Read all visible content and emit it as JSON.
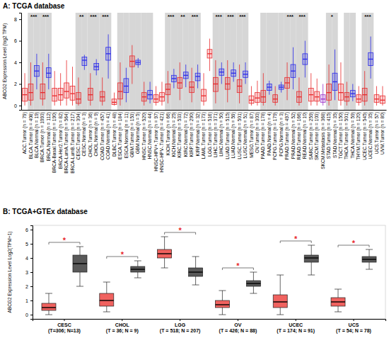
{
  "chart_data": [
    {
      "type": "box",
      "title": "A: TCGA database",
      "y_label": "ABCG2 Expression Level (log2 TPM)",
      "categories": [
        "ACC.Tumor (n = 79)",
        "BLCA.Tumor (n = 408)",
        "BLCA.Normal (n = 19)",
        "BRCA.Tumor (n = 1093)",
        "BRCA.Normal (n = 112)",
        "BRCA-Basal.Tumor (n = 190)",
        "BRCA-Her2.Tumor (n = 82)",
        "BRCA-LumA.Tumor (n = 564)",
        "BRCA-LumB.Tumor (n = 217)",
        "CESC.Tumor (n = 304)",
        "CESC.Normal (n = 3)",
        "CHOL.Tumor (n = 36)",
        "CHOL.Normal (n = 9)",
        "COAD.Tumor (n = 457)",
        "COAD.Normal (n = 41)",
        "DLBC.Tumor (n = 48)",
        "ESCA.Tumor (n = 184)",
        "ESCA.Normal (n = 11)",
        "GBM.Tumor (n = 153)",
        "GBM.Normal (n = 5)",
        "HNSC.Tumor (n = 520)",
        "HNSC.Normal (n = 44)",
        "HNSC-HPV+.Tumor (n = 97)",
        "HNSC-HPV-.Tumor (n = 421)",
        "KICH.Tumor (n = 66)",
        "KICH.Normal (n = 25)",
        "KIRC.Tumor (n = 533)",
        "KIRC.Normal (n = 72)",
        "KIRP.Tumor (n = 290)",
        "KIRP.Normal (n = 32)",
        "LAML.Tumor (n = 173)",
        "LGG.Tumor (n = 516)",
        "LIHC.Tumor (n = 371)",
        "LIHC.Normal (n = 50)",
        "LUAD.Tumor (n = 515)",
        "LUAD.Normal (n = 59)",
        "LUSC.Tumor (n = 501)",
        "LUSC.Normal (n = 51)",
        "MESO.Tumor (n = 87)",
        "OV.Tumor (n = 303)",
        "PAAD.Tumor (n = 178)",
        "PAAD.Normal (n = 4)",
        "PCPG.Tumor (n = 179)",
        "PCPG.Normal (n = 3)",
        "PRAD.Tumor (n = 497)",
        "PRAD.Normal (n = 52)",
        "READ.Tumor (n = 166)",
        "READ.Normal (n = 10)",
        "SARC.Tumor (n = 259)",
        "SKCM.Tumor (n = 103)",
        "SKCM.Metastasis (n = 368)",
        "STAD.Tumor (n = 415)",
        "STAD.Normal (n = 35)",
        "TGCT.Tumor (n = 150)",
        "THCA.Tumor (n = 501)",
        "THCA.Normal (n = 59)",
        "THYM.Tumor (n = 120)",
        "UCEC.Tumor (n = 545)",
        "UCEC.Normal (n = 35)",
        "UCS.Tumor (n = 57)",
        "UVM.Tumor (n = 80)"
      ],
      "values": [
        [
          0,
          0.4,
          1.0,
          1.6,
          3.0
        ],
        [
          0,
          0.5,
          1.2,
          2.0,
          4.0
        ],
        [
          1.5,
          2.7,
          3.2,
          3.7,
          4.8
        ],
        [
          0,
          0.6,
          1.2,
          2.0,
          4.0
        ],
        [
          1.5,
          2.6,
          3.0,
          3.5,
          4.8
        ],
        [
          0,
          0.4,
          0.9,
          1.6,
          3.2
        ],
        [
          0,
          0.5,
          1.0,
          1.6,
          3.0
        ],
        [
          0,
          0.7,
          1.3,
          2.1,
          4.2
        ],
        [
          0,
          0.5,
          1.1,
          1.8,
          3.6
        ],
        [
          0,
          0.2,
          0.6,
          1.2,
          2.6
        ],
        [
          3.3,
          3.7,
          4.2,
          4.5,
          4.7
        ],
        [
          0,
          0.5,
          1.0,
          1.6,
          3.0
        ],
        [
          2.8,
          3.3,
          3.6,
          3.9,
          4.3
        ],
        [
          0,
          0.4,
          0.8,
          1.3,
          2.6
        ],
        [
          2.5,
          4.2,
          4.8,
          5.4,
          6.6
        ],
        [
          0,
          0.1,
          0.3,
          0.6,
          1.2
        ],
        [
          0,
          0.6,
          1.3,
          2.1,
          4.0
        ],
        [
          0.3,
          1.2,
          1.8,
          2.5,
          3.5
        ],
        [
          2.0,
          3.6,
          4.1,
          4.6,
          5.6
        ],
        [
          3.5,
          3.8,
          4.0,
          4.2,
          4.4
        ],
        [
          0,
          0.4,
          0.8,
          1.2,
          2.2
        ],
        [
          0.2,
          0.6,
          1.0,
          1.4,
          2.2
        ],
        [
          0,
          0.3,
          0.6,
          1.0,
          1.8
        ],
        [
          0,
          0.4,
          0.8,
          1.2,
          2.2
        ],
        [
          0.2,
          1.0,
          1.5,
          2.0,
          3.2
        ],
        [
          1.6,
          2.2,
          2.5,
          2.8,
          3.4
        ],
        [
          0.5,
          1.6,
          2.1,
          2.6,
          4.0
        ],
        [
          1.7,
          2.5,
          2.8,
          3.1,
          3.8
        ],
        [
          0.3,
          1.2,
          1.7,
          2.2,
          3.5
        ],
        [
          1.6,
          2.3,
          2.7,
          3.0,
          3.8
        ],
        [
          0,
          0.4,
          0.9,
          1.5,
          3.0
        ],
        [
          3.2,
          4.4,
          4.8,
          5.2,
          6.2
        ],
        [
          0.2,
          1.3,
          2.0,
          2.6,
          4.2
        ],
        [
          2.0,
          2.8,
          3.1,
          3.4,
          4.0
        ],
        [
          0.3,
          1.5,
          2.0,
          2.6,
          4.2
        ],
        [
          2.2,
          2.7,
          3.0,
          3.3,
          4.0
        ],
        [
          0.2,
          1.2,
          1.8,
          2.4,
          3.8
        ],
        [
          2.0,
          2.6,
          2.9,
          3.2,
          4.0
        ],
        [
          0,
          0.2,
          0.5,
          0.9,
          1.8
        ],
        [
          0,
          0.3,
          0.7,
          1.2,
          2.3
        ],
        [
          0,
          0.3,
          0.8,
          1.4,
          3.0
        ],
        [
          1.0,
          1.4,
          1.7,
          2.0,
          2.3
        ],
        [
          0,
          0.3,
          0.6,
          1.0,
          1.8
        ],
        [
          1.2,
          1.5,
          1.7,
          1.9,
          2.2
        ],
        [
          0.5,
          1.6,
          2.1,
          2.6,
          4.0
        ],
        [
          1.5,
          2.6,
          3.2,
          3.8,
          5.4
        ],
        [
          0,
          0.3,
          0.8,
          1.3,
          2.6
        ],
        [
          2.6,
          3.8,
          4.3,
          4.8,
          6.0
        ],
        [
          0,
          0.4,
          1.0,
          1.6,
          3.0
        ],
        [
          0,
          0.4,
          0.8,
          1.3,
          2.5
        ],
        [
          0,
          0.3,
          0.6,
          1.0,
          2.0
        ],
        [
          0,
          0.5,
          1.2,
          2.0,
          3.8
        ],
        [
          0.5,
          1.4,
          2.2,
          3.0,
          5.2
        ],
        [
          0,
          0.5,
          1.2,
          2.0,
          4.0
        ],
        [
          0,
          0.4,
          0.8,
          1.2,
          2.2
        ],
        [
          0.4,
          0.8,
          1.1,
          1.4,
          2.0
        ],
        [
          0,
          0.3,
          0.6,
          1.0,
          1.8
        ],
        [
          0,
          0.4,
          1.0,
          1.6,
          3.2
        ],
        [
          2.5,
          3.7,
          4.3,
          4.9,
          6.4
        ],
        [
          0,
          0.3,
          0.6,
          1.0,
          1.8
        ],
        [
          0,
          0.2,
          0.5,
          0.9,
          1.8
        ]
      ],
      "colors": [
        "#e8282b",
        "#e8282b",
        "#2a2aeb",
        "#e8282b",
        "#2a2aeb",
        "#e8282b",
        "#e8282b",
        "#e8282b",
        "#e8282b",
        "#e8282b",
        "#2a2aeb",
        "#e8282b",
        "#2a2aeb",
        "#e8282b",
        "#2a2aeb",
        "#e8282b",
        "#e8282b",
        "#2a2aeb",
        "#e8282b",
        "#2a2aeb",
        "#e8282b",
        "#2a2aeb",
        "#e8282b",
        "#e8282b",
        "#e8282b",
        "#2a2aeb",
        "#e8282b",
        "#2a2aeb",
        "#e8282b",
        "#2a2aeb",
        "#e8282b",
        "#e8282b",
        "#e8282b",
        "#2a2aeb",
        "#e8282b",
        "#2a2aeb",
        "#e8282b",
        "#2a2aeb",
        "#e8282b",
        "#e8282b",
        "#e8282b",
        "#2a2aeb",
        "#e8282b",
        "#2a2aeb",
        "#e8282b",
        "#2a2aeb",
        "#e8282b",
        "#2a2aeb",
        "#e8282b",
        "#e8282b",
        "#9b30c8",
        "#e8282b",
        "#2a2aeb",
        "#e8282b",
        "#e8282b",
        "#2a2aeb",
        "#e8282b",
        "#e8282b",
        "#2a2aeb",
        "#e8282b",
        "#e8282b"
      ],
      "annotations": [
        {
          "at": 1,
          "text": "***"
        },
        {
          "at": 3,
          "text": "***"
        },
        {
          "at": 9,
          "text": "**"
        },
        {
          "at": 11,
          "text": "***"
        },
        {
          "at": 13,
          "text": "***"
        },
        {
          "at": 24,
          "text": "***"
        },
        {
          "at": 26,
          "text": "**"
        },
        {
          "at": 28,
          "text": "***"
        },
        {
          "at": 32,
          "text": "***"
        },
        {
          "at": 34,
          "text": "***"
        },
        {
          "at": 36,
          "text": "***"
        },
        {
          "at": 44,
          "text": "***"
        },
        {
          "at": 46,
          "text": "***"
        },
        {
          "at": 51,
          "text": "*"
        },
        {
          "at": 57,
          "text": "***"
        }
      ],
      "ylim": [
        -0.4,
        8.6
      ],
      "yticks": [
        0,
        2,
        4,
        6,
        8
      ]
    },
    {
      "type": "box",
      "title": "B: TCGA+GTEx database",
      "y_label": "ABCG2 Expression Level Log2(TPM+1)",
      "categories": [
        "CESC\n(T=306; N=13)",
        "CHOL\n(T = 36; N = 9)",
        "LGG\n(T = 518; N = 207)",
        "OV\n(T = 426; N = 88)",
        "UCEC\n(T = 174; N = 91)",
        "UCS\n(T = 54; N = 78)"
      ],
      "series": [
        {
          "color": "#f0625f",
          "values": [
            [
              0,
              0.3,
              0.5,
              0.8,
              1.5
            ],
            [
              0.2,
              0.6,
              1.0,
              1.5,
              2.3
            ],
            [
              3.3,
              4.0,
              4.3,
              4.6,
              5.5
            ],
            [
              0,
              0.5,
              0.7,
              1.0,
              1.7
            ],
            [
              0,
              0.5,
              0.9,
              1.4,
              2.8
            ],
            [
              0.2,
              0.6,
              0.9,
              1.2,
              1.8
            ]
          ]
        },
        {
          "color": "#595959",
          "values": [
            [
              2.0,
              3.0,
              3.6,
              4.2,
              4.8
            ],
            [
              2.6,
              3.0,
              3.2,
              3.4,
              3.8
            ],
            [
              2.1,
              2.7,
              3.0,
              3.3,
              4.1
            ],
            [
              1.5,
              2.0,
              2.2,
              2.4,
              3.0
            ],
            [
              2.8,
              3.7,
              4.0,
              4.2,
              4.9
            ],
            [
              3.2,
              3.7,
              3.9,
              4.1,
              4.6
            ]
          ]
        }
      ],
      "annotations": [
        {
          "at": 0,
          "text": "*"
        },
        {
          "at": 1,
          "text": "*"
        },
        {
          "at": 2,
          "text": "*"
        },
        {
          "at": 3,
          "text": "*"
        },
        {
          "at": 4,
          "text": "*"
        },
        {
          "at": 5,
          "text": "*"
        }
      ],
      "ylim": [
        -0.3,
        6.3
      ],
      "yticks": [
        0,
        1,
        2,
        3,
        4,
        5,
        6
      ]
    }
  ]
}
